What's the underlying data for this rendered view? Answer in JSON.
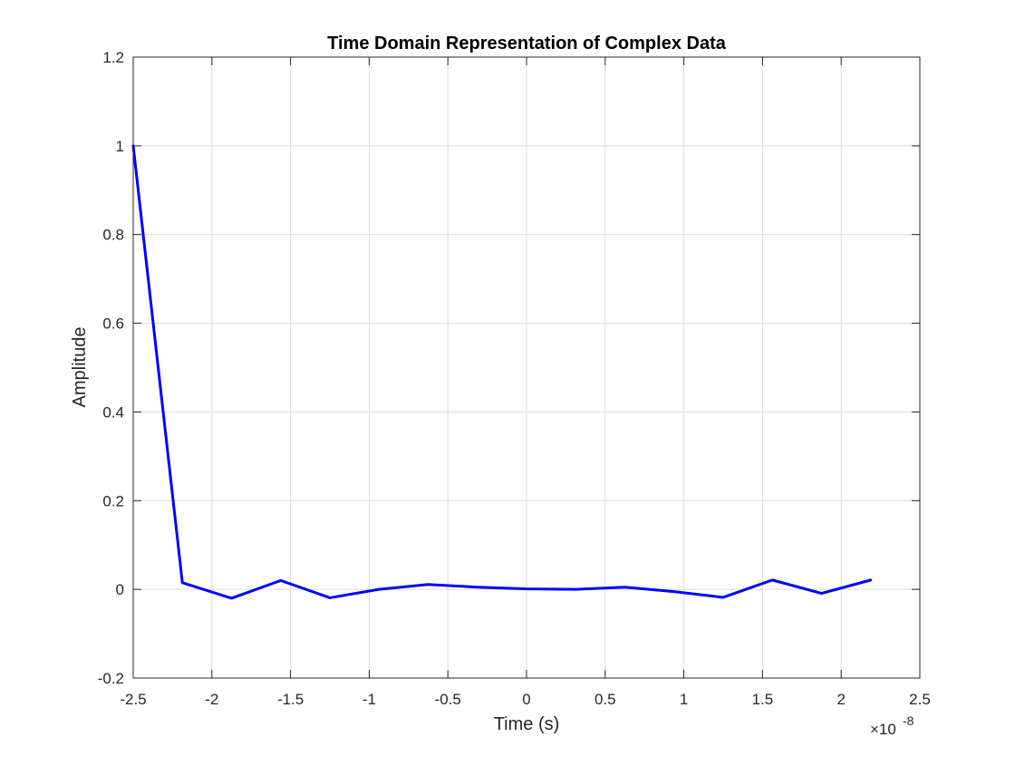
{
  "chart_data": {
    "type": "line",
    "title": "Time Domain Representation of Complex Data",
    "xlabel": "Time (s)",
    "ylabel": "Amplitude",
    "x_exponent_label": "×10",
    "x_exponent_power": "-8",
    "x_multiplier": 1e-08,
    "xlim": [
      -2.5,
      2.5
    ],
    "ylim": [
      -0.2,
      1.2
    ],
    "xticks": [
      -2.5,
      -2,
      -1.5,
      -1,
      -0.5,
      0,
      0.5,
      1,
      1.5,
      2,
      2.5
    ],
    "xtick_labels": [
      "-2.5",
      "-2",
      "-1.5",
      "-1",
      "-0.5",
      "0",
      "0.5",
      "1",
      "1.5",
      "2",
      "2.5"
    ],
    "yticks": [
      -0.2,
      0,
      0.2,
      0.4,
      0.6,
      0.8,
      1,
      1.2
    ],
    "ytick_labels": [
      "-0.2",
      "0",
      "0.2",
      "0.4",
      "0.6",
      "0.8",
      "1",
      "1.2"
    ],
    "grid": true,
    "series": [
      {
        "color": "#0000ff",
        "x": [
          -2.5,
          -2.1875,
          -1.875,
          -1.5625,
          -1.25,
          -0.9375,
          -0.625,
          -0.3125,
          0,
          0.3125,
          0.625,
          0.9375,
          1.25,
          1.5625,
          1.875,
          2.1875
        ],
        "y": [
          1.0,
          0.015,
          -0.02,
          0.02,
          -0.019,
          0.0,
          0.011,
          0.005,
          0.001,
          0.0,
          0.005,
          -0.005,
          -0.018,
          0.021,
          -0.009,
          0.021
        ]
      }
    ]
  }
}
